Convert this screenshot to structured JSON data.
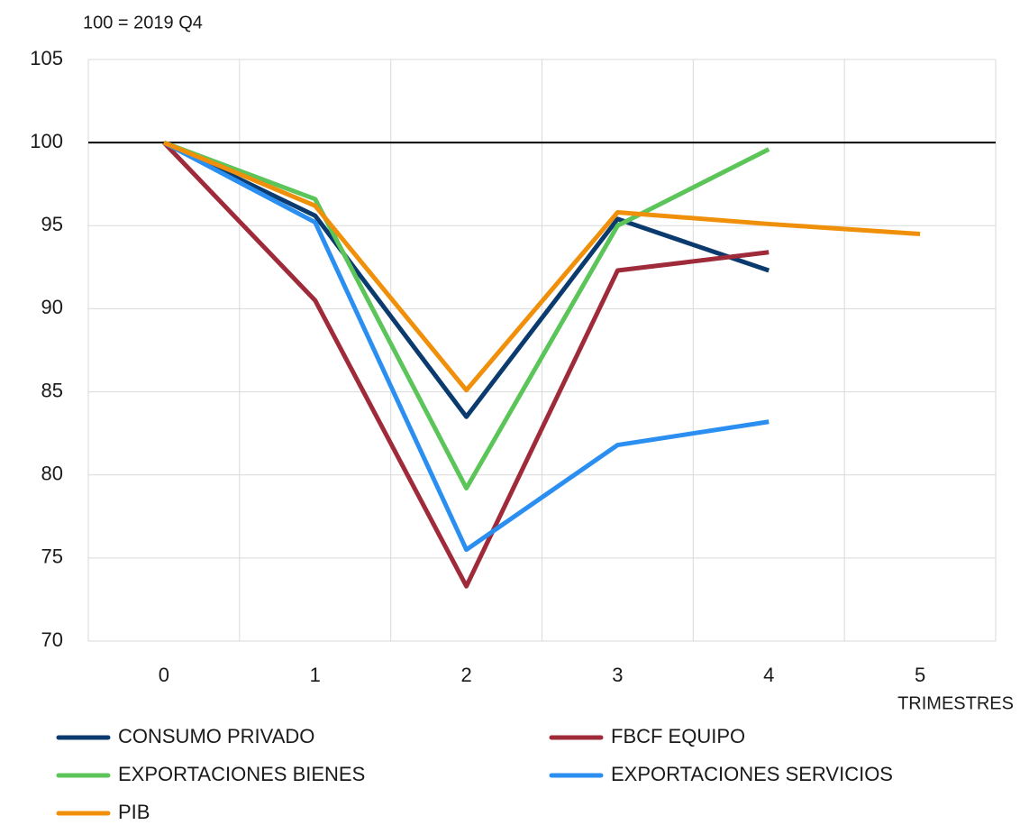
{
  "chart_data": {
    "type": "line",
    "y_label": "100 = 2019 Q4",
    "x_label": "TRIMESTRES",
    "categories": [
      "0",
      "1",
      "2",
      "3",
      "4",
      "5"
    ],
    "series": [
      {
        "name": "CONSUMO PRIVADO",
        "color": "#0b3b6e",
        "values": [
          100,
          95.6,
          83.5,
          95.4,
          92.3,
          null
        ]
      },
      {
        "name": "FBCF EQUIPO",
        "color": "#9e2a3a",
        "values": [
          100,
          90.5,
          73.3,
          92.3,
          93.4,
          null
        ]
      },
      {
        "name": "EXPORTACIONES BIENES",
        "color": "#5cc55a",
        "values": [
          100,
          96.6,
          79.2,
          95.0,
          99.6,
          null
        ]
      },
      {
        "name": "EXPORTACIONES SERVICIOS",
        "color": "#2a8ff0",
        "values": [
          100,
          95.2,
          75.5,
          81.8,
          83.2,
          null
        ]
      },
      {
        "name": "PIB",
        "color": "#f0900a",
        "values": [
          100,
          96.2,
          85.1,
          95.8,
          95.1,
          94.5
        ]
      }
    ],
    "ylim": [
      70,
      105
    ],
    "yticks": [
      70,
      75,
      80,
      85,
      90,
      95,
      100,
      105
    ],
    "reference_line": 100,
    "grid": true
  }
}
